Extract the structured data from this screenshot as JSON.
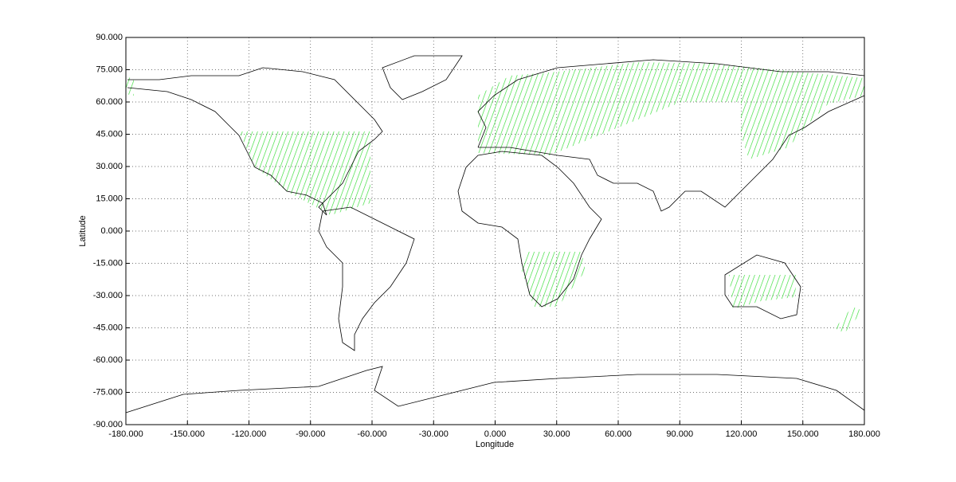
{
  "chart_data": {
    "type": "map",
    "xlabel": "Longitude",
    "ylabel": "Latitude",
    "xlim": [
      -180,
      180
    ],
    "ylim": [
      -90,
      90
    ],
    "grid": true,
    "xticks": [
      {
        "value": -180,
        "label": "-180.000"
      },
      {
        "value": -150,
        "label": "-150.000"
      },
      {
        "value": -120,
        "label": "-120.000"
      },
      {
        "value": -90,
        "label": "-90.000"
      },
      {
        "value": -60,
        "label": "-60.000"
      },
      {
        "value": -30,
        "label": "-30.000"
      },
      {
        "value": 0,
        "label": "0.000"
      },
      {
        "value": 30,
        "label": "30.000"
      },
      {
        "value": 60,
        "label": "60.000"
      },
      {
        "value": 90,
        "label": "90.000"
      },
      {
        "value": 120,
        "label": "120.000"
      },
      {
        "value": 150,
        "label": "150.000"
      },
      {
        "value": 180,
        "label": "180.000"
      }
    ],
    "yticks": [
      {
        "value": -90,
        "label": "-90.000"
      },
      {
        "value": -75,
        "label": "-75.000"
      },
      {
        "value": -60,
        "label": "-60.000"
      },
      {
        "value": -45,
        "label": "-45.000"
      },
      {
        "value": -30,
        "label": "-30.000"
      },
      {
        "value": -15,
        "label": "-15.000"
      },
      {
        "value": 0,
        "label": "0.000"
      },
      {
        "value": 15,
        "label": "15.000"
      },
      {
        "value": 30,
        "label": "30.000"
      },
      {
        "value": 45,
        "label": "45.000"
      },
      {
        "value": 60,
        "label": "60.000"
      },
      {
        "value": 75,
        "label": "75.000"
      },
      {
        "value": 90,
        "label": "90.000"
      }
    ]
  }
}
